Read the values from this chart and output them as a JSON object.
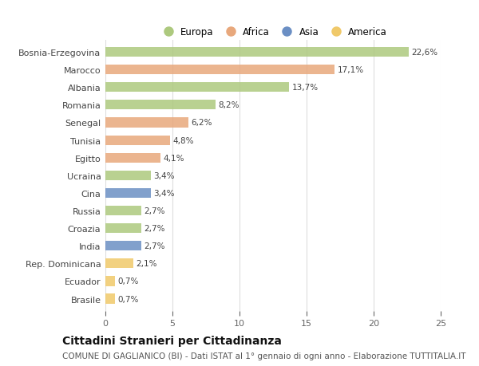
{
  "categories": [
    "Bosnia-Erzegovina",
    "Marocco",
    "Albania",
    "Romania",
    "Senegal",
    "Tunisia",
    "Egitto",
    "Ucraina",
    "Cina",
    "Russia",
    "Croazia",
    "India",
    "Rep. Dominicana",
    "Ecuador",
    "Brasile"
  ],
  "values": [
    22.6,
    17.1,
    13.7,
    8.2,
    6.2,
    4.8,
    4.1,
    3.4,
    3.4,
    2.7,
    2.7,
    2.7,
    2.1,
    0.7,
    0.7
  ],
  "labels": [
    "22,6%",
    "17,1%",
    "13,7%",
    "8,2%",
    "6,2%",
    "4,8%",
    "4,1%",
    "3,4%",
    "3,4%",
    "2,7%",
    "2,7%",
    "2,7%",
    "2,1%",
    "0,7%",
    "0,7%"
  ],
  "colors": [
    "#adc97e",
    "#e8a87c",
    "#adc97e",
    "#adc97e",
    "#e8a87c",
    "#e8a87c",
    "#e8a87c",
    "#adc97e",
    "#6b8fc4",
    "#adc97e",
    "#adc97e",
    "#6b8fc4",
    "#f0c96a",
    "#f0c96a",
    "#f0c96a"
  ],
  "legend": {
    "Europa": "#adc97e",
    "Africa": "#e8a87c",
    "Asia": "#6b8fc4",
    "America": "#f0c96a"
  },
  "xlim": [
    0,
    25
  ],
  "xticks": [
    0,
    5,
    10,
    15,
    20,
    25
  ],
  "title": "Cittadini Stranieri per Cittadinanza",
  "subtitle": "COMUNE DI GAGLIANICO (BI) - Dati ISTAT al 1° gennaio di ogni anno - Elaborazione TUTTITALIA.IT",
  "bar_height": 0.55,
  "bg_color": "#ffffff",
  "grid_color": "#dddddd",
  "title_fontsize": 10,
  "subtitle_fontsize": 7.5,
  "label_fontsize": 7.5,
  "tick_fontsize": 8
}
